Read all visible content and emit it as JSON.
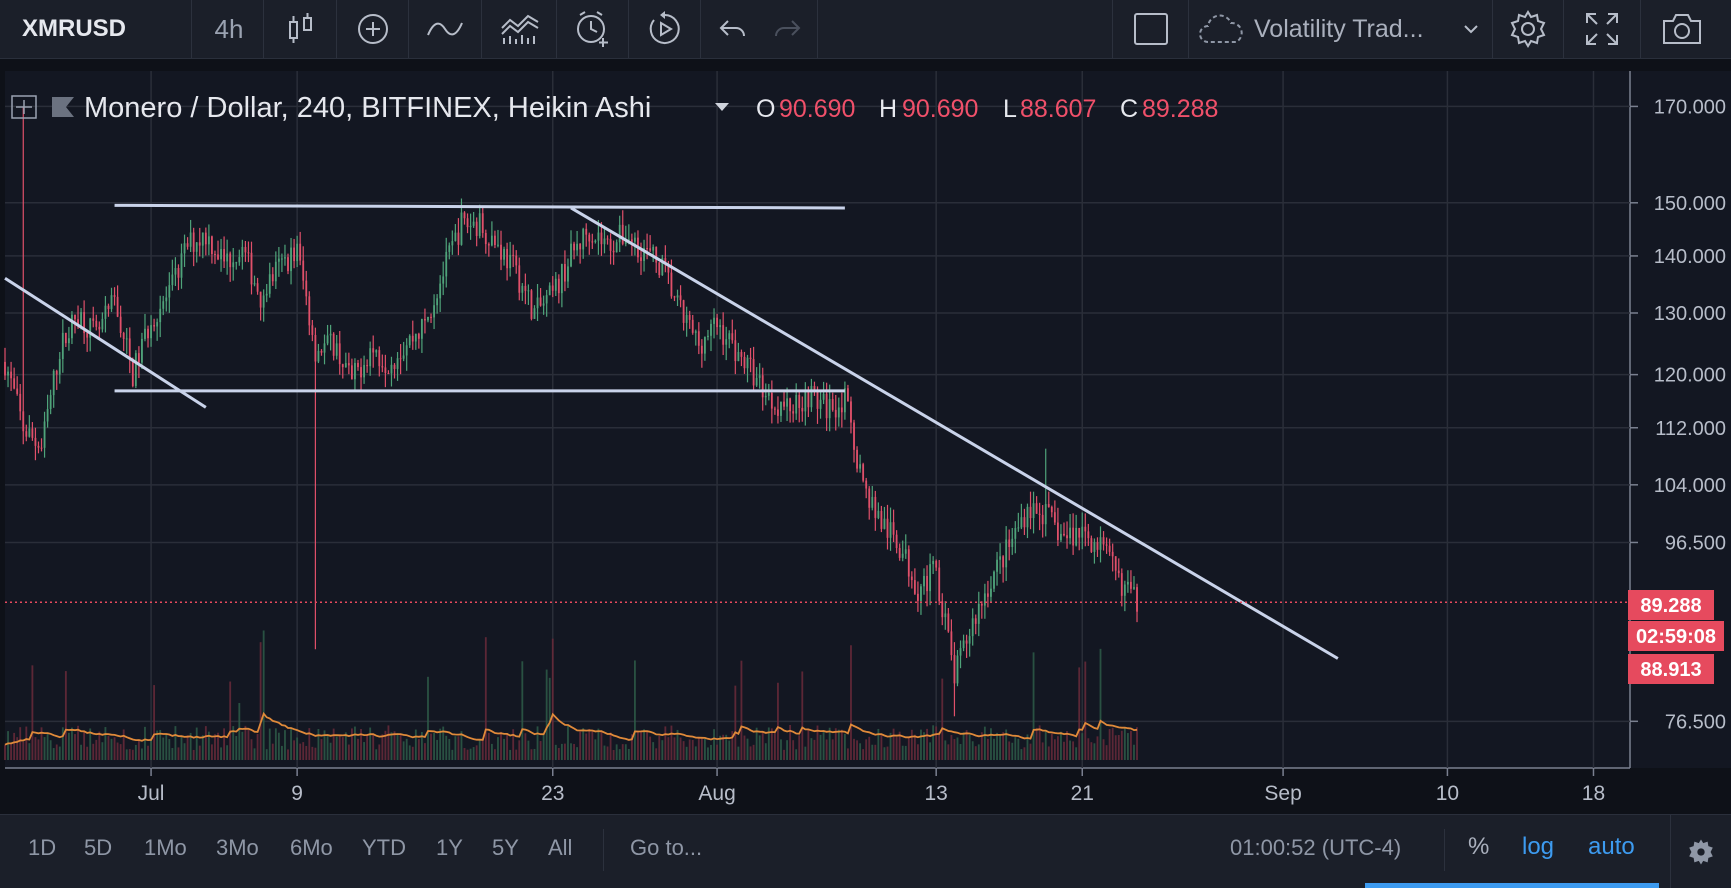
{
  "toolbar": {
    "symbol": "XMRUSD",
    "interval": "4h",
    "theme": "Volatility Trad...",
    "icons": [
      "candles-icon",
      "add-indicator-icon",
      "compare-icon",
      "indicators-icon",
      "alert-icon",
      "replay-icon",
      "undo-icon",
      "redo-icon",
      "fullscreen-square-icon",
      "cloud-icon",
      "chevron-down-icon",
      "settings-icon",
      "expand-icon",
      "camera-icon"
    ]
  },
  "legend": {
    "title": "Monero / Dollar, 240, BITFINEX, Heikin Ashi",
    "o_label": "O",
    "o": "90.690",
    "h_label": "H",
    "h": "90.690",
    "l_label": "L",
    "l": "88.607",
    "c_label": "C",
    "c": "89.288"
  },
  "price_tags": {
    "last": "89.288",
    "countdown": "02:59:08",
    "low": "88.913"
  },
  "bottom": {
    "ranges": [
      "1D",
      "5D",
      "1Mo",
      "3Mo",
      "6Mo",
      "YTD",
      "1Y",
      "5Y",
      "All"
    ],
    "goto": "Go to...",
    "clock": "01:00:52 (UTC-4)",
    "percent": "%",
    "log": "log",
    "auto": "auto"
  },
  "colors": {
    "background": "#131722",
    "up": "#4fa37a",
    "down": "#e0506a",
    "trendline": "#c9d3ea",
    "ma": "#e08a3a",
    "accent": "#3d9bf0",
    "price_tag": "#e64a5e"
  },
  "chart_data": {
    "type": "candlestick",
    "symbol": "Monero / Dollar",
    "exchange": "BITFINEX",
    "interval": "240",
    "style": "Heikin Ashi",
    "y_scale": "log",
    "ylim": [
      72,
      178
    ],
    "y_ticks": [
      170,
      150,
      140,
      130,
      120,
      112,
      104,
      96.5,
      76.5
    ],
    "y_tick_labels": [
      "170.000",
      "150.000",
      "140.000",
      "130.000",
      "120.000",
      "112.000",
      "104.000",
      "96.500",
      "76.500"
    ],
    "x_range": [
      "2018-06-23",
      "2018-09-20"
    ],
    "x_ticks": [
      {
        "date": "2018-07-01",
        "label": "Jul"
      },
      {
        "date": "2018-07-09",
        "label": "9"
      },
      {
        "date": "2018-07-23",
        "label": "23"
      },
      {
        "date": "2018-08-01",
        "label": "Aug"
      },
      {
        "date": "2018-08-13",
        "label": "13"
      },
      {
        "date": "2018-08-21",
        "label": "21"
      },
      {
        "date": "2018-09-01",
        "label": "Sep"
      },
      {
        "date": "2018-09-10",
        "label": "10"
      },
      {
        "date": "2018-09-18",
        "label": "18"
      }
    ],
    "last_price": 89.288,
    "price_line": 89.288,
    "path": [
      [
        "2018-06-23",
        122
      ],
      [
        "2018-06-24",
        112
      ],
      [
        "2018-06-25",
        109
      ],
      [
        "2018-06-26",
        124
      ],
      [
        "2018-06-27",
        130
      ],
      [
        "2018-06-28",
        126
      ],
      [
        "2018-06-29",
        132
      ],
      [
        "2018-06-30",
        120
      ],
      [
        "2018-07-01",
        129
      ],
      [
        "2018-07-02",
        133
      ],
      [
        "2018-07-03",
        142
      ],
      [
        "2018-07-04",
        144
      ],
      [
        "2018-07-05",
        139
      ],
      [
        "2018-07-06",
        141
      ],
      [
        "2018-07-07",
        133
      ],
      [
        "2018-07-08",
        138
      ],
      [
        "2018-07-09",
        141
      ],
      [
        "2018-07-10",
        124
      ],
      [
        "2018-07-11",
        125
      ],
      [
        "2018-07-12",
        119
      ],
      [
        "2018-07-13",
        124
      ],
      [
        "2018-07-14",
        122
      ],
      [
        "2018-07-15",
        125
      ],
      [
        "2018-07-16",
        128
      ],
      [
        "2018-07-17",
        137
      ],
      [
        "2018-07-18",
        146
      ],
      [
        "2018-07-19",
        146
      ],
      [
        "2018-07-20",
        142
      ],
      [
        "2018-07-21",
        137
      ],
      [
        "2018-07-22",
        130
      ],
      [
        "2018-07-23",
        133
      ],
      [
        "2018-07-24",
        140
      ],
      [
        "2018-07-25",
        145
      ],
      [
        "2018-07-26",
        142
      ],
      [
        "2018-07-27",
        144
      ],
      [
        "2018-07-28",
        141
      ],
      [
        "2018-07-29",
        138
      ],
      [
        "2018-07-30",
        130
      ],
      [
        "2018-07-31",
        125
      ],
      [
        "2018-08-01",
        128
      ],
      [
        "2018-08-02",
        124
      ],
      [
        "2018-08-03",
        120
      ],
      [
        "2018-08-04",
        116
      ],
      [
        "2018-08-05",
        115
      ],
      [
        "2018-08-06",
        117
      ],
      [
        "2018-08-07",
        115
      ],
      [
        "2018-08-08",
        116
      ],
      [
        "2018-08-09",
        104
      ],
      [
        "2018-08-10",
        99
      ],
      [
        "2018-08-11",
        96
      ],
      [
        "2018-08-12",
        91
      ],
      [
        "2018-08-13",
        93
      ],
      [
        "2018-08-14",
        81
      ],
      [
        "2018-08-15",
        87
      ],
      [
        "2018-08-16",
        92
      ],
      [
        "2018-08-17",
        96
      ],
      [
        "2018-08-18",
        101
      ],
      [
        "2018-08-19",
        100
      ],
      [
        "2018-08-20",
        97
      ],
      [
        "2018-08-21",
        98
      ],
      [
        "2018-08-22",
        96
      ],
      [
        "2018-08-23",
        92
      ],
      [
        "2018-08-24",
        89.3
      ]
    ],
    "spikes": [
      {
        "date": "2018-06-24",
        "high": 170
      },
      {
        "date": "2018-07-10",
        "low": 84
      },
      {
        "date": "2018-08-14",
        "low": 77
      },
      {
        "date": "2018-08-19",
        "high": 109
      }
    ],
    "trendlines": [
      {
        "from": [
          "2018-06-23",
          136
        ],
        "to": [
          "2018-07-04",
          115
        ]
      },
      {
        "from": [
          "2018-06-29",
          149.5
        ],
        "to": [
          "2018-08-08",
          149
        ]
      },
      {
        "from": [
          "2018-06-29",
          117.5
        ],
        "to": [
          "2018-08-08",
          117.5
        ]
      },
      {
        "from": [
          "2018-07-24",
          149
        ],
        "to": [
          "2018-09-04",
          83
        ]
      }
    ],
    "volume": {
      "ma_level": 0.35
    }
  }
}
